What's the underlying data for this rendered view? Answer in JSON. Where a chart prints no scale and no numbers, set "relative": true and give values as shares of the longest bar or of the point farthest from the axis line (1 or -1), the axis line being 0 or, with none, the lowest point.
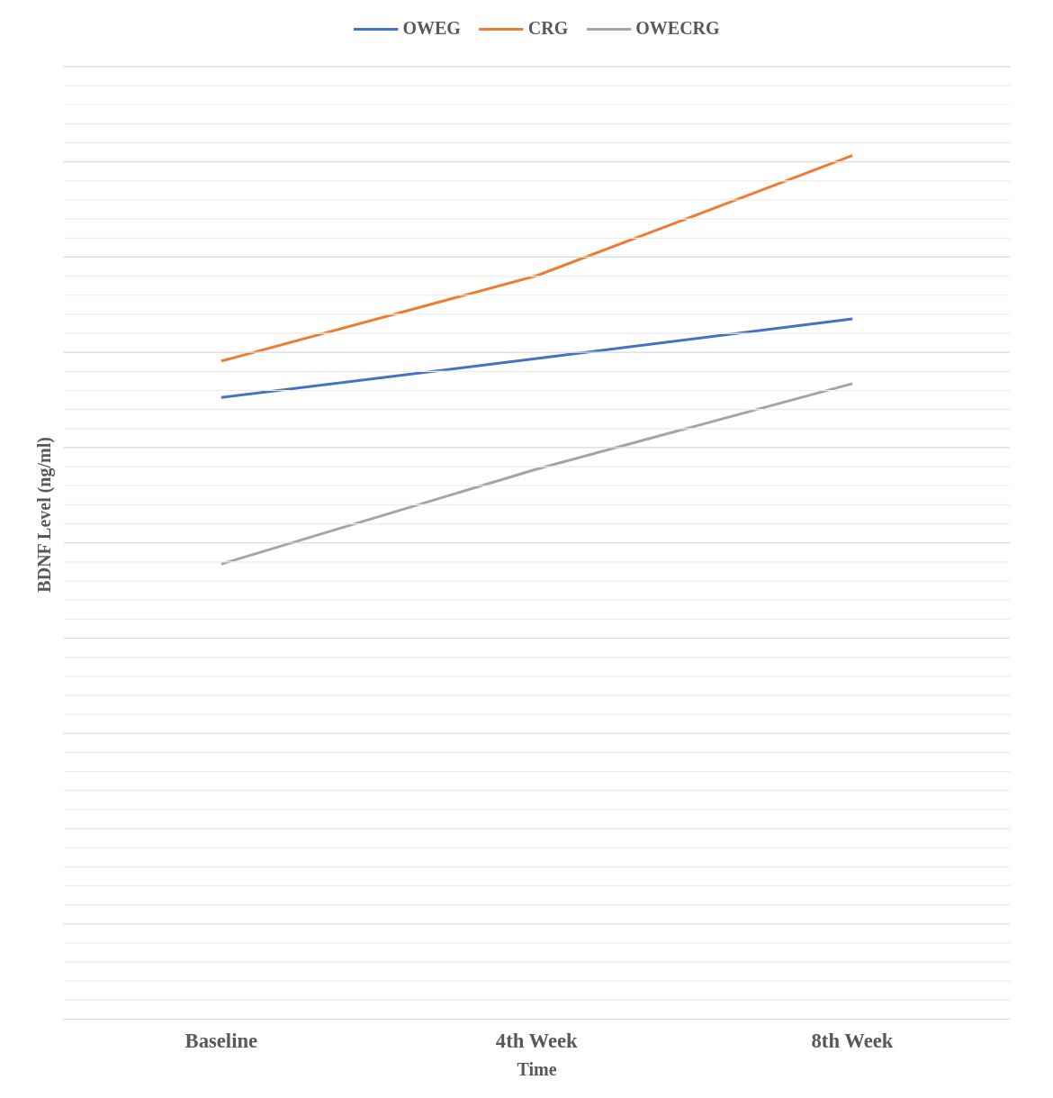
{
  "chart_data": {
    "type": "line",
    "xlabel": "Time",
    "ylabel": "BDNF Level (ng/ml)",
    "categories": [
      "Baseline",
      "4th Week",
      "8th Week"
    ],
    "relative": true,
    "grid": true,
    "legend": "top",
    "tick_labels": "x",
    "marker": "none",
    "line_style": "solid",
    "series": [
      {
        "name": "OWEG",
        "color": "#4472c4",
        "values": [
          0.72,
          0.765,
          0.811
        ]
      },
      {
        "name": "CRG",
        "color": "#ed7d31",
        "values": [
          0.762,
          0.861,
          1.0
        ]
      },
      {
        "name": "OWECRG",
        "color": "#a5a5a5",
        "values": [
          0.527,
          0.637,
          0.736
        ]
      }
    ]
  }
}
